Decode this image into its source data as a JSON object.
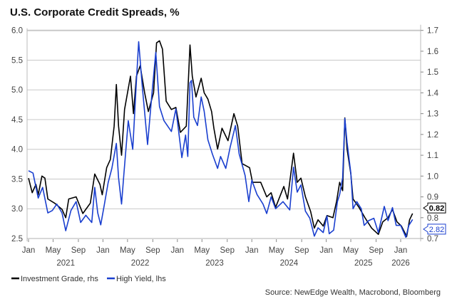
{
  "chart_data": {
    "type": "line",
    "title": "U.S. Corporate Credit Spreads, %",
    "source": "Source: NewEdge Wealth, Macrobond, Bloomberg",
    "x_range": [
      2021.0,
      2026.27
    ],
    "left_axis": {
      "range": [
        2.5,
        6.0
      ],
      "ticks": [
        "2.5",
        "3.0",
        "3.5",
        "4.0",
        "4.5",
        "5.0",
        "5.5",
        "6.0"
      ]
    },
    "right_axis": {
      "range": [
        0.7,
        1.7
      ],
      "ticks": [
        "0.7",
        "0.8",
        "0.9",
        "1.0",
        "1.1",
        "1.2",
        "1.3",
        "1.4",
        "1.5",
        "1.6",
        "1.7"
      ]
    },
    "month_ticks": [
      {
        "x": 2021.0,
        "label": "Jan"
      },
      {
        "x": 2021.33,
        "label": "May"
      },
      {
        "x": 2021.67,
        "label": "Sep"
      },
      {
        "x": 2022.0,
        "label": "Jan"
      },
      {
        "x": 2022.33,
        "label": "May"
      },
      {
        "x": 2022.67,
        "label": "Sep"
      },
      {
        "x": 2023.0,
        "label": "Jan"
      },
      {
        "x": 2023.33,
        "label": "May"
      },
      {
        "x": 2023.67,
        "label": "Sep"
      },
      {
        "x": 2024.0,
        "label": "Jan"
      },
      {
        "x": 2024.33,
        "label": "May"
      },
      {
        "x": 2024.67,
        "label": "Sep"
      },
      {
        "x": 2025.0,
        "label": "Jan"
      },
      {
        "x": 2025.33,
        "label": "May"
      },
      {
        "x": 2025.67,
        "label": "Sep"
      },
      {
        "x": 2026.0,
        "label": "Jan"
      }
    ],
    "year_labels": [
      {
        "x": 2021.5,
        "label": "2021"
      },
      {
        "x": 2022.5,
        "label": "2022"
      },
      {
        "x": 2023.5,
        "label": "2023"
      },
      {
        "x": 2024.5,
        "label": "2024"
      },
      {
        "x": 2025.5,
        "label": "2025"
      },
      {
        "x": 2026.0,
        "label": "2026"
      }
    ],
    "grid": true,
    "legend_position": "bottom-left",
    "series": [
      {
        "name": "Investment Grade, rhs",
        "axis": "right",
        "color": "#000000",
        "last_value": "0.82",
        "x": [
          2021.0,
          2021.05,
          2021.1,
          2021.13,
          2021.18,
          2021.22,
          2021.26,
          2021.35,
          2021.45,
          2021.5,
          2021.54,
          2021.64,
          2021.73,
          2021.83,
          2021.89,
          2021.96,
          2021.99,
          2022.05,
          2022.1,
          2022.15,
          2022.18,
          2022.21,
          2022.25,
          2022.29,
          2022.37,
          2022.41,
          2022.45,
          2022.5,
          2022.56,
          2022.61,
          2022.68,
          2022.72,
          2022.76,
          2022.8,
          2022.85,
          2022.92,
          2022.98,
          2023.04,
          2023.12,
          2023.17,
          2023.2,
          2023.25,
          2023.32,
          2023.36,
          2023.41,
          2023.46,
          2023.49,
          2023.54,
          2023.6,
          2023.68,
          2023.76,
          2023.81,
          2023.87,
          2023.97,
          2024.01,
          2024.12,
          2024.2,
          2024.26,
          2024.32,
          2024.43,
          2024.48,
          2024.56,
          2024.61,
          2024.66,
          2024.72,
          2024.79,
          2024.84,
          2024.89,
          2024.96,
          2025.01,
          2025.09,
          2025.14,
          2025.18,
          2025.22,
          2025.25,
          2025.28,
          2025.33,
          2025.36,
          2025.44,
          2025.52,
          2025.61,
          2025.7,
          2025.76,
          2025.83,
          2025.89,
          2025.95,
          2026.01,
          2026.08,
          2026.12,
          2026.16
        ],
        "y": [
          0.99,
          0.92,
          0.96,
          0.91,
          1.0,
          0.99,
          0.89,
          0.87,
          0.84,
          0.8,
          0.89,
          0.9,
          0.82,
          0.87,
          1.01,
          0.96,
          0.91,
          1.04,
          1.08,
          1.24,
          1.44,
          1.24,
          1.1,
          1.32,
          1.48,
          1.3,
          1.48,
          1.53,
          1.4,
          1.31,
          1.4,
          1.64,
          1.65,
          1.61,
          1.36,
          1.32,
          1.33,
          1.21,
          1.24,
          1.63,
          1.48,
          1.38,
          1.47,
          1.4,
          1.37,
          1.31,
          1.23,
          1.13,
          1.23,
          1.17,
          1.3,
          1.24,
          1.06,
          1.04,
          0.97,
          0.97,
          0.9,
          0.92,
          0.85,
          0.95,
          0.89,
          1.11,
          0.97,
          0.99,
          0.9,
          0.83,
          0.75,
          0.79,
          0.76,
          0.81,
          0.8,
          0.88,
          0.97,
          0.93,
          1.28,
          1.13,
          1.01,
          0.89,
          0.85,
          0.8,
          0.75,
          0.72,
          0.78,
          0.8,
          0.84,
          0.78,
          0.76,
          0.71,
          0.79,
          0.82
        ]
      },
      {
        "name": "High Yield, lhs",
        "axis": "left",
        "color": "#1a3fcf",
        "last_value": "2.82",
        "x": [
          2021.0,
          2021.06,
          2021.13,
          2021.19,
          2021.26,
          2021.32,
          2021.38,
          2021.45,
          2021.5,
          2021.57,
          2021.64,
          2021.7,
          2021.77,
          2021.85,
          2021.89,
          2021.93,
          2021.97,
          2022.02,
          2022.07,
          2022.12,
          2022.18,
          2022.21,
          2022.25,
          2022.28,
          2022.34,
          2022.4,
          2022.45,
          2022.48,
          2022.53,
          2022.6,
          2022.66,
          2022.71,
          2022.76,
          2022.82,
          2022.92,
          2022.98,
          2023.06,
          2023.11,
          2023.14,
          2023.17,
          2023.19,
          2023.22,
          2023.27,
          2023.32,
          2023.36,
          2023.41,
          2023.47,
          2023.54,
          2023.58,
          2023.65,
          2023.71,
          2023.78,
          2023.83,
          2023.91,
          2023.96,
          2024.0,
          2024.07,
          2024.15,
          2024.2,
          2024.26,
          2024.32,
          2024.42,
          2024.51,
          2024.56,
          2024.61,
          2024.66,
          2024.72,
          2024.78,
          2024.84,
          2024.89,
          2024.96,
          2025.01,
          2025.04,
          2025.1,
          2025.15,
          2025.18,
          2025.22,
          2025.25,
          2025.28,
          2025.33,
          2025.36,
          2025.41,
          2025.47,
          2025.51,
          2025.57,
          2025.64,
          2025.7,
          2025.78,
          2025.83,
          2025.89,
          2025.94,
          2026.0,
          2026.07,
          2026.11,
          2026.16
        ],
        "y": [
          3.64,
          3.6,
          3.18,
          3.36,
          2.93,
          2.97,
          3.08,
          2.93,
          2.63,
          2.97,
          3.12,
          2.77,
          2.89,
          2.77,
          3.36,
          2.93,
          2.73,
          3.08,
          3.44,
          3.68,
          4.1,
          3.52,
          3.08,
          3.56,
          4.48,
          4.0,
          5.16,
          5.81,
          5.04,
          4.08,
          4.96,
          5.63,
          4.72,
          4.48,
          4.3,
          4.68,
          3.86,
          4.24,
          3.88,
          5.12,
          5.16,
          4.54,
          4.4,
          4.88,
          4.64,
          4.16,
          3.92,
          3.68,
          3.88,
          3.68,
          4.04,
          4.4,
          3.92,
          3.56,
          3.12,
          3.48,
          3.24,
          3.08,
          2.92,
          3.2,
          3.0,
          3.12,
          2.98,
          3.7,
          3.28,
          3.4,
          2.96,
          2.84,
          2.54,
          2.68,
          2.6,
          2.88,
          2.58,
          2.64,
          3.12,
          3.24,
          3.52,
          4.52,
          4.12,
          3.6,
          3.0,
          3.12,
          3.0,
          2.72,
          2.8,
          2.84,
          2.6,
          3.04,
          2.8,
          3.02,
          2.72,
          2.72,
          2.52,
          2.72,
          2.82
        ]
      }
    ]
  }
}
